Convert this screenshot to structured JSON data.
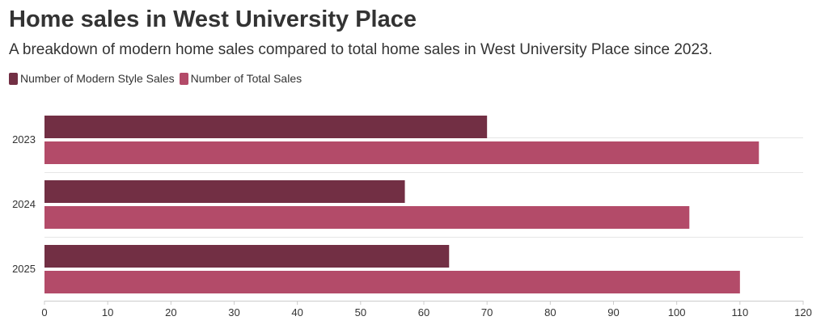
{
  "chart_data": {
    "type": "bar",
    "orientation": "horizontal",
    "title": "Home sales in West University Place",
    "subtitle": "A breakdown of modern home sales compared to total home sales in West University Place since 2023.",
    "categories": [
      "2023",
      "2024",
      "2025"
    ],
    "series": [
      {
        "name": "Number of Modern Style Sales",
        "color": "#722f44",
        "values": [
          70,
          57,
          64
        ]
      },
      {
        "name": "Number of Total Sales",
        "color": "#b34b69",
        "values": [
          113,
          102,
          110
        ]
      }
    ],
    "xlabel": "",
    "ylabel": "",
    "xlim": [
      0,
      120
    ],
    "xticks": [
      0,
      10,
      20,
      30,
      40,
      50,
      60,
      70,
      80,
      90,
      100,
      110,
      120
    ],
    "grid": true,
    "legend_position": "top-left"
  }
}
